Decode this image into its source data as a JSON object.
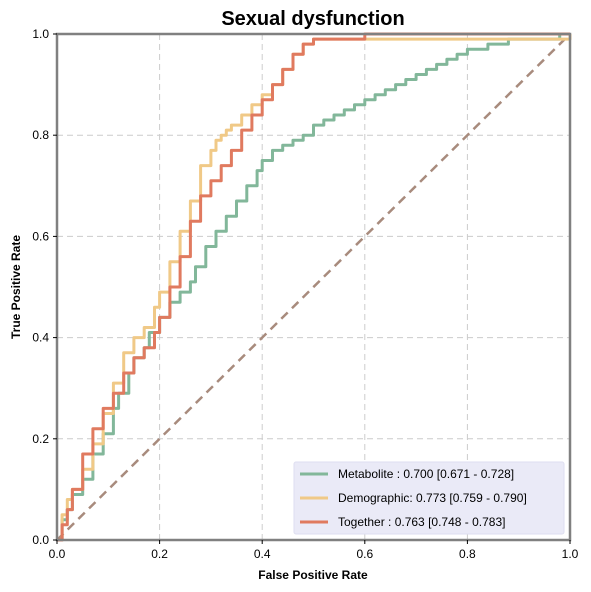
{
  "chart_data": {
    "type": "line",
    "title": "Sexual dysfunction",
    "xlabel": "False Positive Rate",
    "ylabel": "True Positive Rate",
    "xlim": [
      0,
      1
    ],
    "ylim": [
      0,
      1
    ],
    "xticks": [
      0.0,
      0.2,
      0.4,
      0.6,
      0.8,
      1.0
    ],
    "yticks": [
      0.0,
      0.2,
      0.4,
      0.6,
      0.8,
      1.0
    ],
    "xtick_labels": [
      "0.0",
      "0.2",
      "0.4",
      "0.6",
      "0.8",
      "1.0"
    ],
    "ytick_labels": [
      "0.0",
      "0.2",
      "0.4",
      "0.6",
      "0.8",
      "1.0"
    ],
    "grid": true,
    "legend_position": "bottom-right",
    "series": [
      {
        "name": "Metabolite",
        "legend_label": "Metabolite     : 0.700 [0.671 - 0.728]",
        "color": "#82b79a",
        "x": [
          0.0,
          0.01,
          0.02,
          0.03,
          0.05,
          0.07,
          0.09,
          0.11,
          0.12,
          0.14,
          0.15,
          0.17,
          0.18,
          0.2,
          0.22,
          0.24,
          0.26,
          0.27,
          0.29,
          0.31,
          0.33,
          0.35,
          0.37,
          0.39,
          0.4,
          0.42,
          0.44,
          0.46,
          0.48,
          0.5,
          0.52,
          0.54,
          0.56,
          0.58,
          0.6,
          0.62,
          0.64,
          0.66,
          0.68,
          0.7,
          0.72,
          0.74,
          0.76,
          0.78,
          0.8,
          0.82,
          0.84,
          0.86,
          0.88,
          0.9,
          0.92,
          0.94,
          0.96,
          0.98,
          1.0
        ],
        "y": [
          0.0,
          0.04,
          0.06,
          0.09,
          0.12,
          0.17,
          0.21,
          0.26,
          0.29,
          0.33,
          0.36,
          0.38,
          0.41,
          0.44,
          0.47,
          0.49,
          0.51,
          0.54,
          0.58,
          0.61,
          0.64,
          0.67,
          0.7,
          0.73,
          0.75,
          0.77,
          0.78,
          0.79,
          0.8,
          0.82,
          0.83,
          0.84,
          0.85,
          0.86,
          0.87,
          0.88,
          0.89,
          0.9,
          0.91,
          0.92,
          0.93,
          0.94,
          0.95,
          0.96,
          0.97,
          0.97,
          0.98,
          0.98,
          0.99,
          0.99,
          0.99,
          0.99,
          0.99,
          1.0,
          1.0
        ]
      },
      {
        "name": "Demographic",
        "legend_label": "Demographic: 0.773 [0.759 - 0.790]",
        "color": "#f0c987",
        "x": [
          0.0,
          0.01,
          0.02,
          0.03,
          0.05,
          0.07,
          0.09,
          0.11,
          0.13,
          0.15,
          0.17,
          0.19,
          0.2,
          0.22,
          0.24,
          0.26,
          0.28,
          0.3,
          0.31,
          0.32,
          0.33,
          0.34,
          0.36,
          0.38,
          0.4,
          0.42,
          0.44,
          0.46,
          0.48,
          0.5,
          0.55,
          0.6,
          0.7,
          0.8,
          0.9,
          1.0
        ],
        "y": [
          0.0,
          0.05,
          0.08,
          0.1,
          0.14,
          0.19,
          0.25,
          0.31,
          0.37,
          0.4,
          0.42,
          0.46,
          0.49,
          0.55,
          0.61,
          0.67,
          0.74,
          0.77,
          0.79,
          0.8,
          0.81,
          0.82,
          0.84,
          0.86,
          0.88,
          0.9,
          0.93,
          0.96,
          0.98,
          0.99,
          0.99,
          0.99,
          0.99,
          0.99,
          0.99,
          1.0
        ]
      },
      {
        "name": "Together",
        "legend_label": "Together       : 0.763 [0.748 - 0.783]",
        "color": "#e07a5f",
        "x": [
          0.0,
          0.01,
          0.02,
          0.03,
          0.05,
          0.07,
          0.09,
          0.11,
          0.13,
          0.15,
          0.17,
          0.19,
          0.2,
          0.22,
          0.24,
          0.26,
          0.28,
          0.3,
          0.32,
          0.34,
          0.36,
          0.38,
          0.4,
          0.42,
          0.44,
          0.46,
          0.48,
          0.5,
          0.55,
          0.6,
          0.7,
          0.8,
          0.9,
          1.0
        ],
        "y": [
          0.0,
          0.03,
          0.06,
          0.1,
          0.17,
          0.22,
          0.26,
          0.29,
          0.33,
          0.36,
          0.38,
          0.41,
          0.44,
          0.5,
          0.56,
          0.63,
          0.68,
          0.71,
          0.74,
          0.77,
          0.81,
          0.84,
          0.87,
          0.9,
          0.93,
          0.96,
          0.98,
          0.99,
          0.99,
          1.0,
          1.0,
          1.0,
          1.0,
          1.0
        ]
      }
    ],
    "reference_line": {
      "x": [
        0,
        1
      ],
      "y": [
        0,
        1
      ],
      "color": "#a88b7d",
      "dash": "dashed"
    }
  }
}
